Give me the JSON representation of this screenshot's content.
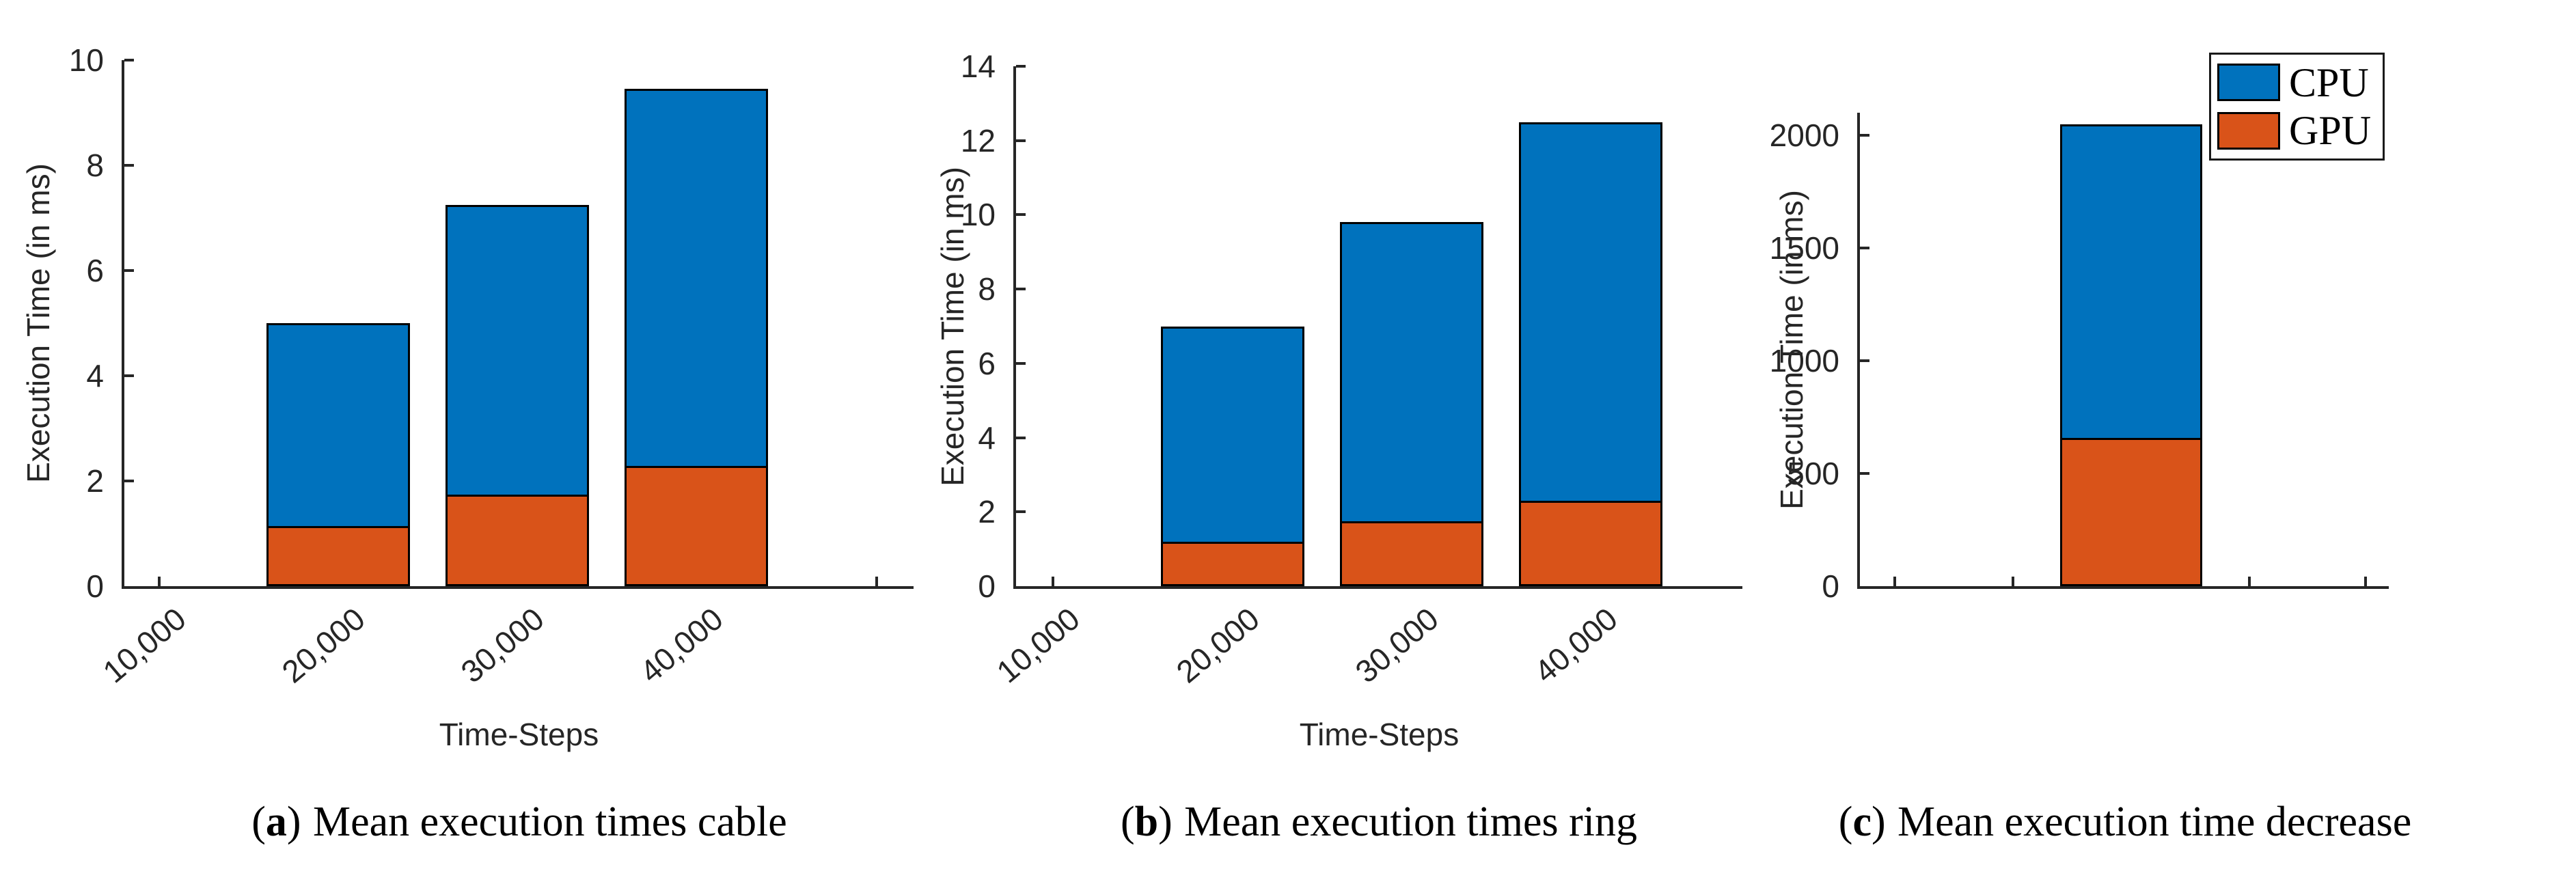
{
  "figure": {
    "background": "#ffffff",
    "axis_color": "#262626",
    "bar_edge_color": "#000000",
    "legend": {
      "position": "top-right",
      "entries": [
        {
          "label": "CPU",
          "color": "#0072BD"
        },
        {
          "label": "GPU",
          "color": "#D95319"
        }
      ]
    }
  },
  "captions": [
    {
      "letter": "a",
      "text": "Mean execution times cable"
    },
    {
      "letter": "b",
      "text": "Mean execution times ring"
    },
    {
      "letter": "c",
      "text": "Mean execution time decrease"
    }
  ],
  "chart_data": [
    {
      "type": "bar",
      "stacked": true,
      "caption": "(a) Mean execution times cable",
      "xlabel": "Time-Steps",
      "ylabel": "Execution Time (in ms)",
      "categories": [
        "10,000",
        "20,000",
        "30,000",
        "40,000",
        ""
      ],
      "series": [
        {
          "name": "GPU",
          "color": "#D95319",
          "values": [
            0,
            1.1,
            1.7,
            2.25,
            0
          ]
        },
        {
          "name": "CPU",
          "color": "#0072BD",
          "values": [
            0,
            3.9,
            5.55,
            7.2,
            0
          ]
        }
      ],
      "stack_totals": [
        0,
        5.0,
        7.25,
        9.45,
        0
      ],
      "ylim": [
        0,
        10
      ],
      "ytick_values": [
        0,
        2,
        4,
        6,
        8,
        10
      ],
      "ytick_labels": [
        "0",
        "2",
        "4",
        "6",
        "8",
        "10"
      ],
      "xtick_angle": -40,
      "grid": false,
      "legend_visible": false
    },
    {
      "type": "bar",
      "stacked": true,
      "caption": "(b) Mean execution times ring",
      "xlabel": "Time-Steps",
      "ylabel": "Execution Time (in ms)",
      "categories": [
        "10,000",
        "20,000",
        "30,000",
        "40,000"
      ],
      "series": [
        {
          "name": "GPU",
          "color": "#D95319",
          "values": [
            0,
            1.15,
            1.7,
            2.25
          ]
        },
        {
          "name": "CPU",
          "color": "#0072BD",
          "values": [
            0,
            5.85,
            8.1,
            10.25
          ]
        }
      ],
      "stack_totals": [
        0,
        7.0,
        9.8,
        12.5
      ],
      "ylim": [
        0,
        14
      ],
      "ytick_values": [
        0,
        2,
        4,
        6,
        8,
        10,
        12,
        14
      ],
      "ytick_labels": [
        "0",
        "2",
        "4",
        "6",
        "8",
        "10",
        "12",
        "14"
      ],
      "xtick_angle": -40,
      "grid": false,
      "legend_visible": false
    },
    {
      "type": "bar",
      "stacked": true,
      "caption": "(c) Mean execution time decrease",
      "xlabel": "",
      "ylabel": "Execution Time (in ms)",
      "categories": [
        "",
        "",
        "",
        "",
        ""
      ],
      "x_axis_note": "five unlabeled tick marks, single bar centered on middle tick",
      "series": [
        {
          "name": "GPU",
          "color": "#D95319",
          "values": [
            0,
            0,
            650,
            0,
            0
          ]
        },
        {
          "name": "CPU",
          "color": "#0072BD",
          "values": [
            0,
            0,
            1400,
            0,
            0
          ]
        }
      ],
      "stack_totals": [
        0,
        0,
        2050,
        0,
        0
      ],
      "ylim": [
        0,
        2100
      ],
      "ytick_values": [
        0,
        500,
        1000,
        1500,
        2000
      ],
      "ytick_labels": [
        "0",
        "500",
        "1000",
        "1500",
        "2000"
      ],
      "xtick_angle": 0,
      "grid": false,
      "legend_visible": true
    }
  ]
}
